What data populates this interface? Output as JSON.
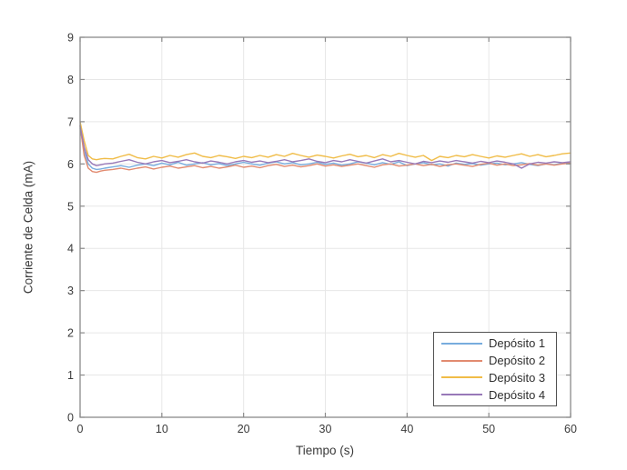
{
  "chart_data": {
    "type": "line",
    "title": "",
    "xlabel": "Tiempo (s)",
    "ylabel": "Corriente de Celda (mA)",
    "xlim": [
      0,
      60
    ],
    "ylim": [
      0,
      9
    ],
    "xticks": [
      0,
      10,
      20,
      30,
      40,
      50,
      60
    ],
    "yticks": [
      0,
      1,
      2,
      3,
      4,
      5,
      6,
      7,
      8,
      9
    ],
    "grid": true,
    "legend_position": "bottom-right",
    "x": [
      0,
      0.5,
      1,
      1.5,
      2,
      2.5,
      3,
      4,
      5,
      6,
      7,
      8,
      9,
      10,
      11,
      12,
      13,
      14,
      15,
      16,
      17,
      18,
      19,
      20,
      21,
      22,
      23,
      24,
      25,
      26,
      27,
      28,
      29,
      30,
      31,
      32,
      33,
      34,
      35,
      36,
      37,
      38,
      39,
      40,
      41,
      42,
      43,
      44,
      45,
      46,
      47,
      48,
      49,
      50,
      51,
      52,
      53,
      54,
      55,
      56,
      57,
      58,
      59,
      60
    ],
    "series": [
      {
        "name": "Depósito 1",
        "color": "#77ACDE",
        "values": [
          6.85,
          6.3,
          6.0,
          5.9,
          5.87,
          5.88,
          5.9,
          5.93,
          5.96,
          5.92,
          5.97,
          6.0,
          5.96,
          6.02,
          5.98,
          6.04,
          5.97,
          6.0,
          6.03,
          5.98,
          6.01,
          5.96,
          6.0,
          6.04,
          6.0,
          5.97,
          6.02,
          6.05,
          6.0,
          6.03,
          5.98,
          6.0,
          6.04,
          5.99,
          6.02,
          5.97,
          6.0,
          6.05,
          6.02,
          5.98,
          6.03,
          5.99,
          6.05,
          5.96,
          6.0,
          6.03,
          5.98,
          6.0,
          5.95,
          6.02,
          5.99,
          6.01,
          5.97,
          6.0,
          6.02,
          5.98,
          6.0,
          6.03,
          5.99,
          5.96,
          6.0,
          5.98,
          6.02,
          6.0
        ]
      },
      {
        "name": "Depósito 2",
        "color": "#E28B70",
        "values": [
          6.9,
          6.2,
          5.9,
          5.82,
          5.8,
          5.83,
          5.85,
          5.87,
          5.9,
          5.86,
          5.9,
          5.93,
          5.88,
          5.92,
          5.95,
          5.9,
          5.93,
          5.96,
          5.91,
          5.94,
          5.9,
          5.93,
          5.97,
          5.92,
          5.95,
          5.91,
          5.96,
          5.99,
          5.94,
          5.97,
          5.93,
          5.96,
          6.0,
          5.95,
          5.98,
          5.94,
          5.97,
          6.0,
          5.96,
          5.92,
          5.98,
          6.0,
          5.95,
          5.97,
          6.0,
          5.96,
          5.99,
          5.94,
          5.98,
          6.0,
          5.97,
          5.94,
          5.99,
          6.02,
          5.97,
          6.0,
          5.96,
          5.98,
          6.01,
          5.97,
          6.0,
          5.97,
          6.0,
          6.02
        ]
      },
      {
        "name": "Depósito 3",
        "color": "#F0BC47",
        "values": [
          7.0,
          6.55,
          6.2,
          6.12,
          6.1,
          6.12,
          6.13,
          6.12,
          6.18,
          6.23,
          6.15,
          6.12,
          6.18,
          6.14,
          6.2,
          6.16,
          6.22,
          6.26,
          6.18,
          6.15,
          6.2,
          6.17,
          6.13,
          6.18,
          6.15,
          6.2,
          6.16,
          6.22,
          6.18,
          6.25,
          6.2,
          6.16,
          6.21,
          6.18,
          6.14,
          6.19,
          6.23,
          6.17,
          6.2,
          6.15,
          6.22,
          6.18,
          6.25,
          6.2,
          6.16,
          6.2,
          6.08,
          6.18,
          6.15,
          6.2,
          6.17,
          6.22,
          6.18,
          6.14,
          6.19,
          6.16,
          6.2,
          6.24,
          6.18,
          6.22,
          6.17,
          6.2,
          6.24,
          6.26
        ]
      },
      {
        "name": "Depósito 4",
        "color": "#9879B8",
        "values": [
          6.9,
          6.4,
          6.1,
          6.0,
          5.96,
          5.98,
          6.0,
          6.02,
          6.06,
          6.1,
          6.04,
          6.0,
          6.05,
          6.08,
          6.03,
          6.06,
          6.1,
          6.05,
          6.02,
          6.07,
          6.04,
          6.0,
          6.05,
          6.08,
          6.04,
          6.07,
          6.03,
          6.06,
          6.1,
          6.05,
          6.08,
          6.12,
          6.06,
          6.03,
          6.08,
          6.05,
          6.1,
          6.06,
          6.02,
          6.07,
          6.12,
          6.05,
          6.08,
          6.04,
          6.0,
          6.06,
          6.03,
          6.07,
          6.04,
          6.08,
          6.05,
          6.02,
          6.06,
          6.03,
          6.07,
          6.04,
          6.0,
          5.9,
          6.0,
          6.04,
          6.02,
          6.05,
          6.03,
          6.05
        ]
      }
    ]
  },
  "colors": {
    "background": "#FFFFFF",
    "axis_box": "#8A8A8A",
    "grid": "#E7E7E7",
    "tick_label": "#3A3A3A",
    "legend_border": "#525252"
  }
}
